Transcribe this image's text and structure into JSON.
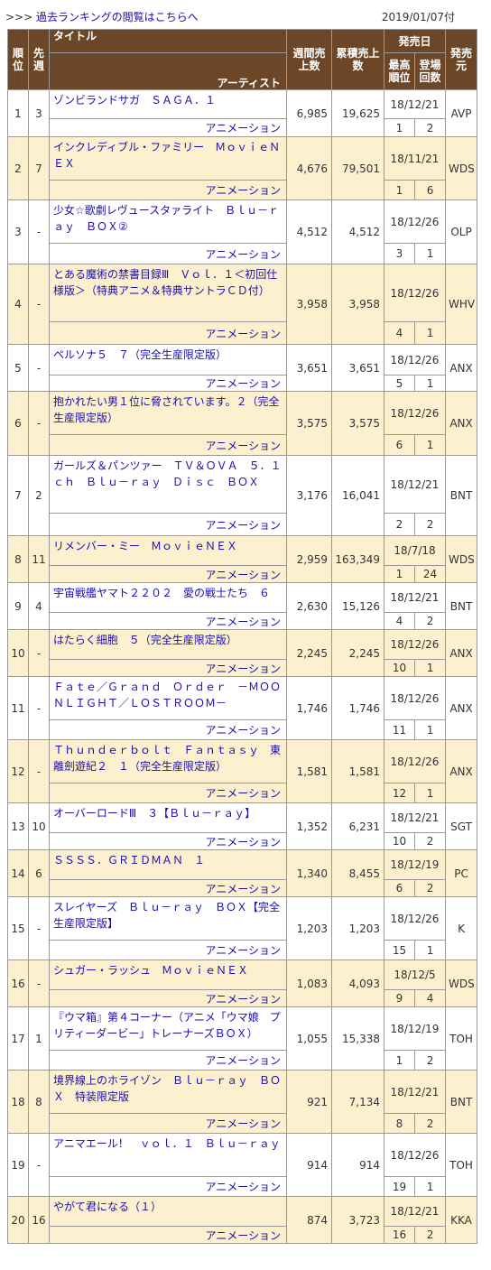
{
  "topbar": {
    "arrows": ">>>",
    "archive_link": "過去ランキングの閲覧はこちらへ",
    "date": "2019/01/07付"
  },
  "header": {
    "rank": "順位",
    "prev": "先週",
    "title": "タイトル",
    "artist": "アーティスト",
    "weekly": "週間売上数",
    "total": "累積売上数",
    "release": "発売日",
    "peak": "最高順位",
    "weeks": "登場回数",
    "label": "発売元"
  },
  "rows": [
    {
      "rank": "1",
      "prev": "3",
      "title": "ゾンビランドサガ　ＳＡＧＡ．１",
      "artist": "アニメーション",
      "weekly": "6,985",
      "total": "19,625",
      "release": "18/12/21",
      "peak": "1",
      "weeks": "2",
      "label": "AVP"
    },
    {
      "rank": "2",
      "prev": "7",
      "title": "インクレディブル・ファミリー　ＭｏｖｉｅＮＥＸ",
      "artist": "アニメーション",
      "weekly": "4,676",
      "total": "79,501",
      "release": "18/11/21",
      "peak": "1",
      "weeks": "6",
      "label": "WDS"
    },
    {
      "rank": "3",
      "prev": "-",
      "title": "少女☆歌劇レヴュースタァライト　Ｂｌｕ－ｒａｙ　ＢＯＸ②",
      "artist": "アニメーション",
      "weekly": "4,512",
      "total": "4,512",
      "release": "18/12/26",
      "peak": "3",
      "weeks": "1",
      "label": "OLP"
    },
    {
      "rank": "4",
      "prev": "-",
      "title": "とある魔術の禁書目録Ⅲ　Ｖｏｌ．１＜初回仕様版＞（特典アニメ＆特典サントラＣＤ付）",
      "artist": "アニメーション",
      "weekly": "3,958",
      "total": "3,958",
      "release": "18/12/26",
      "peak": "4",
      "weeks": "1",
      "label": "WHV"
    },
    {
      "rank": "5",
      "prev": "-",
      "title": "ペルソナ５　７（完全生産限定版）",
      "artist": "アニメーション",
      "weekly": "3,651",
      "total": "3,651",
      "release": "18/12/26",
      "peak": "5",
      "weeks": "1",
      "label": "ANX"
    },
    {
      "rank": "6",
      "prev": "-",
      "title": "抱かれたい男１位に脅されています。２（完全生産限定版）",
      "artist": "アニメーション",
      "weekly": "3,575",
      "total": "3,575",
      "release": "18/12/26",
      "peak": "6",
      "weeks": "1",
      "label": "ANX"
    },
    {
      "rank": "7",
      "prev": "2",
      "title": "ガールズ＆パンツァー　ＴＶ＆ＯＶＡ　５．１ｃｈ　Ｂｌｕ－ｒａｙ　Ｄｉｓｃ　ＢＯＸ",
      "artist": "アニメーション",
      "weekly": "3,176",
      "total": "16,041",
      "release": "18/12/21",
      "peak": "2",
      "weeks": "2",
      "label": "BNT"
    },
    {
      "rank": "8",
      "prev": "11",
      "title": "リメンバー・ミー　ＭｏｖｉｅＮＥＸ",
      "artist": "アニメーション",
      "weekly": "2,959",
      "total": "163,349",
      "release": "18/7/18",
      "peak": "1",
      "weeks": "24",
      "label": "WDS"
    },
    {
      "rank": "9",
      "prev": "4",
      "title": "宇宙戦艦ヤマト２２０２　愛の戦士たち　６",
      "artist": "アニメーション",
      "weekly": "2,630",
      "total": "15,126",
      "release": "18/12/21",
      "peak": "4",
      "weeks": "2",
      "label": "BNT"
    },
    {
      "rank": "10",
      "prev": "-",
      "title": "はたらく細胞　５（完全生産限定版）",
      "artist": "アニメーション",
      "weekly": "2,245",
      "total": "2,245",
      "release": "18/12/26",
      "peak": "10",
      "weeks": "1",
      "label": "ANX"
    },
    {
      "rank": "11",
      "prev": "-",
      "title": "Ｆａｔｅ／Ｇｒａｎｄ　Ｏｒｄｅｒ　－ＭＯＯＮＬＩＧＨＴ／ＬＯＳＴＲＯＯＭ－",
      "artist": "アニメーション",
      "weekly": "1,746",
      "total": "1,746",
      "release": "18/12/26",
      "peak": "11",
      "weeks": "1",
      "label": "ANX"
    },
    {
      "rank": "12",
      "prev": "-",
      "title": "Ｔｈｕｎｄｅｒｂｏｌｔ　Ｆａｎｔａｓｙ　東離劍遊紀２　１（完全生産限定版）",
      "artist": "アニメーション",
      "weekly": "1,581",
      "total": "1,581",
      "release": "18/12/26",
      "peak": "12",
      "weeks": "1",
      "label": "ANX"
    },
    {
      "rank": "13",
      "prev": "10",
      "title": "オーバーロードⅢ　３【Ｂｌｕ－ｒａｙ】",
      "artist": "アニメーション",
      "weekly": "1,352",
      "total": "6,231",
      "release": "18/12/21",
      "peak": "10",
      "weeks": "2",
      "label": "SGT"
    },
    {
      "rank": "14",
      "prev": "6",
      "title": "ＳＳＳＳ．ＧＲＩＤＭＡＮ　１",
      "artist": "アニメーション",
      "weekly": "1,340",
      "total": "8,455",
      "release": "18/12/19",
      "peak": "6",
      "weeks": "2",
      "label": "PC"
    },
    {
      "rank": "15",
      "prev": "-",
      "title": "スレイヤーズ　Ｂｌｕ－ｒａｙ　ＢＯＸ【完全生産限定版】",
      "artist": "アニメーション",
      "weekly": "1,203",
      "total": "1,203",
      "release": "18/12/26",
      "peak": "15",
      "weeks": "1",
      "label": "K"
    },
    {
      "rank": "16",
      "prev": "-",
      "title": "シュガー・ラッシュ　ＭｏｖｉｅＮＥＸ",
      "artist": "アニメーション",
      "weekly": "1,083",
      "total": "4,093",
      "release": "18/12/5",
      "peak": "9",
      "weeks": "4",
      "label": "WDS"
    },
    {
      "rank": "17",
      "prev": "1",
      "title": "『ウマ箱』第４コーナー（アニメ「ウマ娘　プリティーダービー」トレーナーズＢＯＸ）",
      "artist": "アニメーション",
      "weekly": "1,055",
      "total": "15,338",
      "release": "18/12/19",
      "peak": "1",
      "weeks": "2",
      "label": "TOH"
    },
    {
      "rank": "18",
      "prev": "8",
      "title": "境界線上のホライゾン　Ｂｌｕ－ｒａｙ　ＢＯＸ　特装限定版",
      "artist": "アニメーション",
      "weekly": "921",
      "total": "7,134",
      "release": "18/12/21",
      "peak": "8",
      "weeks": "2",
      "label": "BNT"
    },
    {
      "rank": "19",
      "prev": "-",
      "title": "アニマエール！　ｖｏｌ．１　Ｂｌｕ－ｒａｙ",
      "artist": "アニメーション",
      "weekly": "914",
      "total": "914",
      "release": "18/12/26",
      "peak": "19",
      "weeks": "1",
      "label": "TOH"
    },
    {
      "rank": "20",
      "prev": "16",
      "title": "やがて君になる（１）",
      "artist": "アニメーション",
      "weekly": "874",
      "total": "3,723",
      "release": "18/12/21",
      "peak": "16",
      "weeks": "2",
      "label": "KKA"
    }
  ]
}
